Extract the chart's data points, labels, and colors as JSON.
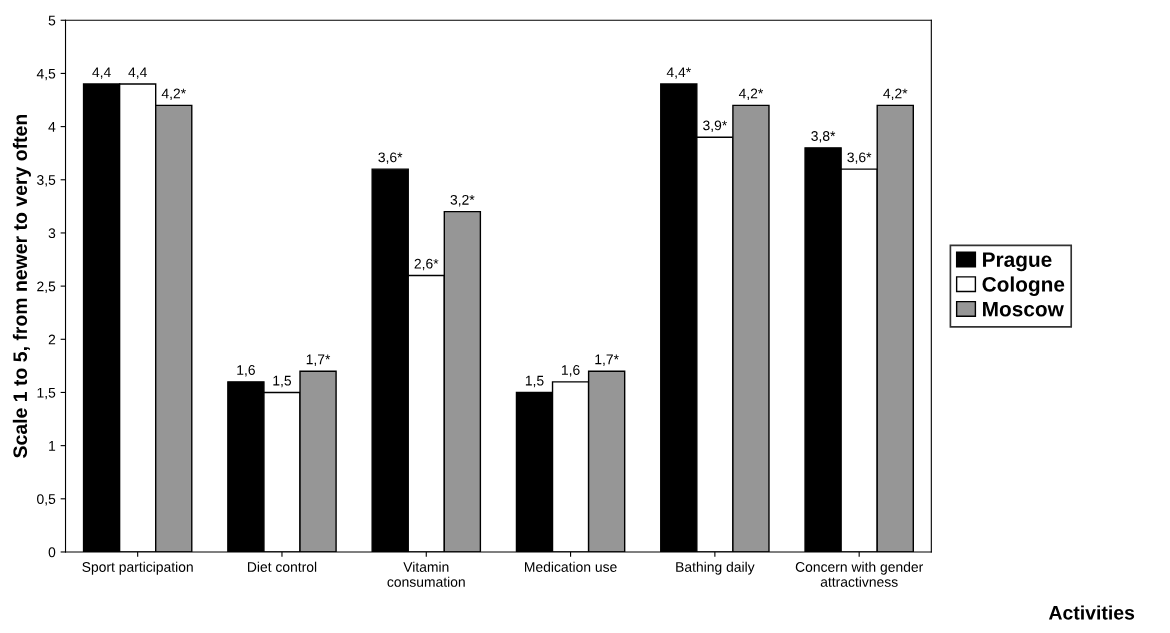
{
  "chart_data": {
    "type": "bar",
    "annotations": [
      "Activities"
    ],
    "ylabel": "Scale 1 to 5, from newer to very often",
    "categories": [
      "Sport participation",
      "Diet control",
      "Vitamin\nconsumation",
      "Medication use",
      "Bathing daily",
      "Concern with gender\nattractivness"
    ],
    "series": [
      {
        "name": "Prague",
        "color": "#000000",
        "values": [
          4.4,
          1.6,
          3.6,
          1.5,
          4.4,
          3.8
        ],
        "value_labels": [
          "4,4",
          "1,6",
          "3,6*",
          "1,5",
          "4,4*",
          "3,8*"
        ]
      },
      {
        "name": "Cologne",
        "color": "#ffffff",
        "values": [
          4.4,
          1.5,
          2.6,
          1.6,
          3.9,
          3.6
        ],
        "value_labels": [
          "4,4",
          "1,5",
          "2,6*",
          "1,6",
          "3,9*",
          "3,6*"
        ]
      },
      {
        "name": "Moscow",
        "color": "#969696",
        "values": [
          4.2,
          1.7,
          3.2,
          1.7,
          4.2,
          4.2
        ],
        "value_labels": [
          "4,2*",
          "1,7*",
          "3,2*",
          "1,7*",
          "4,2*",
          "4,2*"
        ]
      }
    ],
    "ylim": [
      0,
      5
    ],
    "yticks": [
      0,
      {
        "value": 0.5,
        "label": "0,5"
      },
      1,
      {
        "value": 1.5,
        "label": "1,5"
      },
      2,
      {
        "value": 2.5,
        "label": "2,5"
      },
      3,
      {
        "value": 3.5,
        "label": "3,5"
      },
      4,
      {
        "value": 4.5,
        "label": "4,5"
      },
      5
    ],
    "grid": false,
    "legend": "right"
  }
}
